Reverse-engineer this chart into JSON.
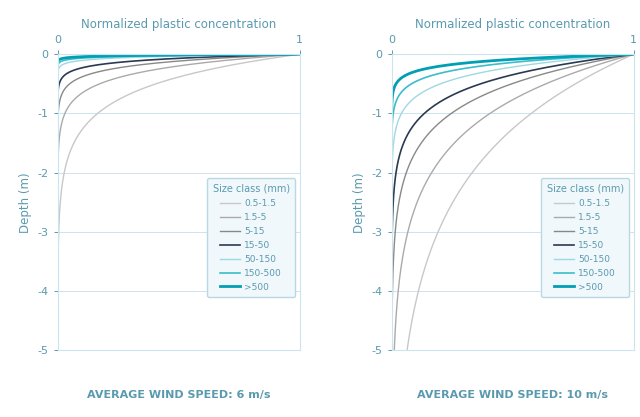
{
  "title": "Normalized plastic concentration",
  "ylabel": "Depth (m)",
  "xlabel_left": "AVERAGE WIND SPEED: 6 m/s",
  "xlabel_right": "AVERAGE WIND SPEED: 10 m/s",
  "legend_title": "Size class (mm)",
  "legend_labels": [
    "0.5-1.5",
    "1.5-5",
    "5-15",
    "15-50",
    "50-150",
    "150-500",
    ">500"
  ],
  "colors": [
    "#c8c8c8",
    "#aaaaaa",
    "#888888",
    "#2a3a52",
    "#9ed8e4",
    "#3bbccc",
    "#00a0b4"
  ],
  "linewidths": [
    1.0,
    1.0,
    1.0,
    1.2,
    1.0,
    1.2,
    2.0
  ],
  "ylim": [
    -5,
    0
  ],
  "xlim": [
    0,
    1
  ],
  "wind6_decays": [
    1.8,
    3.5,
    6.0,
    10.0,
    22.0,
    35.0,
    55.0
  ],
  "wind10_decays": [
    0.55,
    0.9,
    1.4,
    2.0,
    3.2,
    5.0,
    8.0
  ],
  "background_color": "#ffffff",
  "grid_color": "#cce4ee",
  "tick_color": "#5a9aae",
  "label_color": "#5a9aae",
  "title_color": "#5a9aae"
}
